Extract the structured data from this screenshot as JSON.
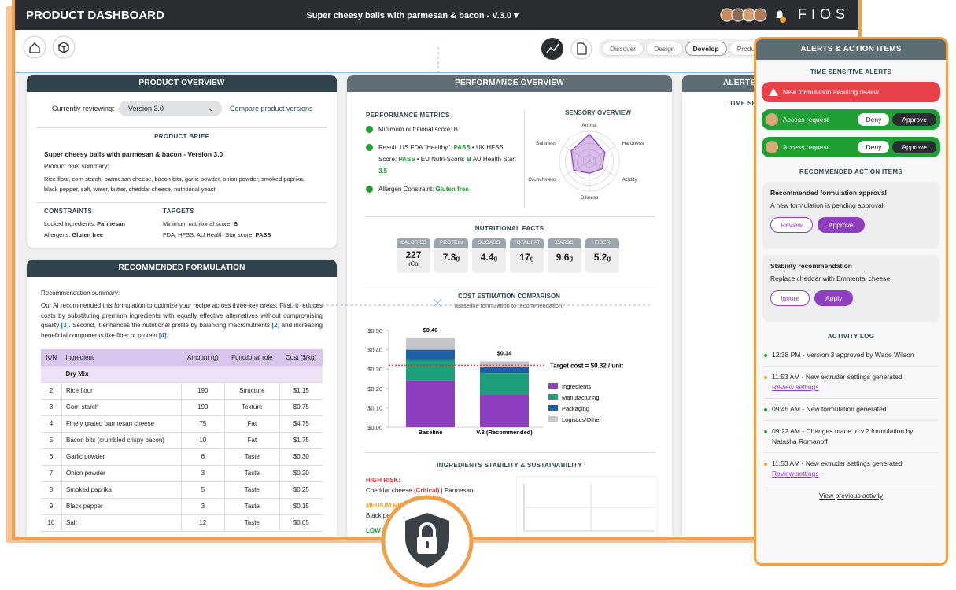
{
  "header": {
    "title": "PRODUCT DASHBOARD",
    "product": "Super cheesy balls with parmesan & bacon - V.3.0",
    "brand": "FIOS"
  },
  "nav": {
    "tabs": [
      "Discover",
      "Design",
      "Develop",
      "Produce"
    ],
    "active": "Develop"
  },
  "product_overview": {
    "title": "PRODUCT OVERVIEW",
    "reviewing_label": "Currently reviewing:",
    "version": "Version 3.0",
    "compare_link": "Compare product versions",
    "brief_title": "PRODUCT BRIEF",
    "brief_name": "Super cheesy balls with parmesan & bacon - Version 3.0",
    "summary_label": "Product brief summary:",
    "summary": "Rice flour, corn starch, parmesan cheese, bacon bits, garlic powder, onion powder, smoked paprika, black pepper, salt, water, butter, cheddar cheese, nutritional yeast",
    "constraints_title": "CONSTRAINTS",
    "constraints": [
      {
        "label": "Locked ingredients:",
        "value": "Parmesan"
      },
      {
        "label": "Allergens:",
        "value": "Gluten free"
      }
    ],
    "targets_title": "TARGETS",
    "targets": [
      {
        "label": "Minimum nutritional score:",
        "value": "B"
      },
      {
        "label": "FDA, HFSS, AU Health Star score:",
        "value": "PASS"
      }
    ]
  },
  "recommended_formulation": {
    "title": "RECOMMENDED FORMULATION",
    "summary_label": "Recommendation summary:",
    "summary": [
      {
        "text": "Our AI recommended this formulation to optimize your recipe across three key areas. First, it reduces costs by substituting premium ingredients with equally effective alternatives without compromising quality "
      },
      {
        "text": "[3]",
        "color": "#2a6fd6"
      },
      {
        "text": ". Second, it enhances the nutritional profile by balancing macronutrients "
      },
      {
        "text": "[2]",
        "color": "#2a6fd6"
      },
      {
        "text": " and increasing beneficial components like fiber or protein "
      },
      {
        "text": "[4]",
        "color": "#2a6fd6"
      },
      {
        "text": "."
      }
    ],
    "table": {
      "headers": [
        "N/N",
        "Ingredient",
        "Amount (g)",
        "Functional role",
        "Cost ($/kg)"
      ],
      "group": "Dry Mix",
      "rows": [
        [
          "2",
          "Rice flour",
          "190",
          "Structure",
          "$1.15"
        ],
        [
          "3",
          "Corn starch",
          "190",
          "Texture",
          "$0.75"
        ],
        [
          "4",
          "Finely grated parmesan cheese",
          "75",
          "Fat",
          "$4.75"
        ],
        [
          "5",
          "Bacon bits (crumbled crispy bacon)",
          "10",
          "Fat",
          "$1.75"
        ],
        [
          "6",
          "Garlic powder",
          "6",
          "Taste",
          "$0.30"
        ],
        [
          "7",
          "Onion powder",
          "3",
          "Taste",
          "$0.20"
        ],
        [
          "8",
          "Smoked paprika",
          "5",
          "Taste",
          "$0.25"
        ],
        [
          "9",
          "Black pepper",
          "3",
          "Taste",
          "$0.15"
        ],
        [
          "10",
          "Salt",
          "12",
          "Taste",
          "$0.05"
        ]
      ]
    }
  },
  "performance_overview": {
    "title": "PERFORMANCE OVERVIEW",
    "metrics_title": "PERFORMANCE METRICS",
    "metrics": [
      [
        {
          "text": "Minimum nutritional score: B"
        }
      ],
      [
        {
          "text": "Result: US FDA \"Healthy\": "
        },
        {
          "text": "PASS",
          "color": "#1a9a2e"
        },
        {
          "text": " • UK HFSS Score: "
        },
        {
          "text": "PASS",
          "color": "#1a9a2e"
        },
        {
          "text": " • EU Nutri-Score: "
        },
        {
          "text": "B",
          "color": "#1a9a2e"
        },
        {
          "text": " AU Health Star: "
        },
        {
          "text": "3.5",
          "color": "#1a9a2e"
        }
      ],
      [
        {
          "text": "Allergen Constraint: "
        },
        {
          "text": "Gluten free",
          "color": "#1a9a2e"
        }
      ]
    ],
    "sensory": {
      "type": "radar",
      "title": "SENSORY OVERVIEW",
      "axes": [
        "Aroma",
        "Hardness",
        "Acidity",
        "Oiliness",
        "Crunchiness",
        "Saltiness"
      ],
      "values": [
        4.5,
        3,
        2.5,
        2,
        3,
        3.5
      ],
      "rlim": [
        0,
        5
      ],
      "color": "#8e3fbf"
    },
    "nutrition_title": "NUTRITIONAL FACTS",
    "nutrition": [
      {
        "label": "CALORIES",
        "value": "227",
        "unit": "kCal"
      },
      {
        "label": "PROTEIN",
        "value": "7.3",
        "unit": "g"
      },
      {
        "label": "SUGARS",
        "value": "4.4",
        "unit": "g"
      },
      {
        "label": "TOTAL FAT",
        "value": "17",
        "unit": "g"
      },
      {
        "label": "CARBS",
        "value": "9.6",
        "unit": "g"
      },
      {
        "label": "FIBER",
        "value": "5.2",
        "unit": "g"
      }
    ],
    "stability": {
      "title": "INGREDIENTS STABILITY & SUSTAINABILITY",
      "high_label": "HIGH RISK:",
      "high": [
        {
          "text": "Cheddar cheese "
        },
        {
          "text": "(Critical)",
          "color": "#e0342f"
        },
        {
          "text": "  |  Parmesan"
        }
      ],
      "medium_label": "MEDIUM RISK:",
      "medium": [
        {
          "text": "Black pepper  |  Cashews  |"
        }
      ],
      "low_label": "LOW RISK:"
    }
  },
  "chart_data": {
    "type": "bar",
    "stacked": true,
    "title": "COST ESTIMATION COMPARISON",
    "subtitle": "(Baseline formulation to recommendation)",
    "categories": [
      "Baseline",
      "V.3 (Recommended)"
    ],
    "series": [
      {
        "name": "Ingredients",
        "color": "#8e3fbf",
        "values": [
          0.24,
          0.17
        ]
      },
      {
        "name": "Manufacturing",
        "color": "#1e9e7a",
        "values": [
          0.11,
          0.11
        ]
      },
      {
        "name": "Packaging",
        "color": "#1f5fa8",
        "values": [
          0.05,
          0.03
        ]
      },
      {
        "name": "Logistics/Other",
        "color": "#c3c7cb",
        "values": [
          0.06,
          0.03
        ]
      }
    ],
    "total_labels": [
      "$0.46",
      "$0.34"
    ],
    "ylim": [
      0,
      0.5
    ],
    "yticks": [
      {
        "value": 0,
        "label": "$0.00"
      },
      {
        "value": 0.1,
        "label": "$0.10"
      },
      {
        "value": 0.2,
        "label": "$0.20"
      },
      {
        "value": 0.3,
        "label": "$0.30"
      },
      {
        "value": 0.4,
        "label": "$0.40"
      },
      {
        "value": 0.5,
        "label": "$0.50"
      }
    ],
    "target": 0.32,
    "target_label": "Target cost = $0.32 / unit",
    "target_color": "#e0342f"
  },
  "alerts": {
    "title": "ALERTS & ACTION ITEMS",
    "time_title": "TIME SENSITIVE ALERTS",
    "time_alerts": [
      {
        "text": "New formulation awaiting review",
        "color": "#e8414a"
      },
      {
        "text": "Access request",
        "color": "#1fa035",
        "deny": "Deny",
        "approve": "Approve"
      },
      {
        "text": "Access request",
        "color": "#1fa035",
        "deny": "Deny",
        "approve": "Approve"
      }
    ],
    "actions_title": "RECOMMENDED ACTION ITEMS",
    "actions": [
      {
        "title": "Recommended formulation approval",
        "text": "A new formulation is pending approval.",
        "secondary": "Review",
        "primary": "Approve"
      },
      {
        "title": "Stability recommendation",
        "text": "Replace cheddar with Emmental cheese.",
        "secondary": "Ignore",
        "primary": "Apply"
      }
    ],
    "log_title": "ACTIVITY LOG",
    "log": [
      {
        "text": "12:38 PM - Version 3 approved by Wade Wilson",
        "color": "#1fa035"
      },
      {
        "text": "11:53 AM - New extruder settings generated",
        "link": "Review settings",
        "color": "#f0a020"
      },
      {
        "text": "09:45 AM - New formulation generated",
        "color": "#1fa035"
      },
      {
        "text": "09:22 AM - Changes made to v.2 formulation by Natasha Romanoff",
        "color": "#1fa035"
      },
      {
        "text": "11:53 AM - New extruder settings generated",
        "link": "Review settings",
        "color": "#f0a020"
      }
    ],
    "view_more": "View previous activity"
  }
}
